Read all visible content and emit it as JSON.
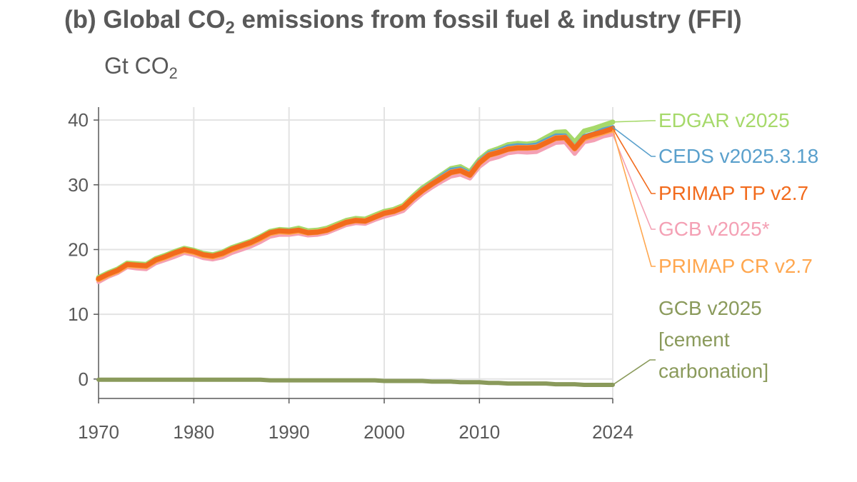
{
  "title": {
    "main": "(b) Global CO",
    "sub": "2",
    "rest": " emissions from fossil fuel & industry (FFI)"
  },
  "unit": {
    "main": "Gt CO",
    "sub": "2"
  },
  "chart_data": {
    "type": "line",
    "xlim": [
      1970,
      2024
    ],
    "ylim": [
      -3,
      42
    ],
    "x_ticks": [
      "1970",
      "1980",
      "1990",
      "2000",
      "2010",
      "2024"
    ],
    "y_ticks": [
      "0",
      "10",
      "20",
      "30",
      "40"
    ],
    "grid": true,
    "legend": "inline labels at right end of lines",
    "x": [
      1970,
      1971,
      1972,
      1973,
      1974,
      1975,
      1976,
      1977,
      1978,
      1979,
      1980,
      1981,
      1982,
      1983,
      1984,
      1985,
      1986,
      1987,
      1988,
      1989,
      1990,
      1991,
      1992,
      1993,
      1994,
      1995,
      1996,
      1997,
      1998,
      1999,
      2000,
      2001,
      2002,
      2003,
      2004,
      2005,
      2006,
      2007,
      2008,
      2009,
      2010,
      2011,
      2012,
      2013,
      2014,
      2015,
      2016,
      2017,
      2018,
      2019,
      2020,
      2021,
      2022,
      2023,
      2024
    ],
    "series": [
      {
        "name": "EDGAR v2025",
        "color": "#a6d96a",
        "width": 7,
        "values": [
          15.7,
          16.4,
          17.0,
          17.9,
          17.8,
          17.7,
          18.6,
          19.1,
          19.7,
          20.2,
          19.9,
          19.4,
          19.2,
          19.6,
          20.3,
          20.8,
          21.3,
          22.0,
          22.8,
          23.1,
          23.0,
          23.3,
          22.9,
          23.0,
          23.3,
          23.9,
          24.5,
          24.8,
          24.7,
          25.3,
          25.9,
          26.2,
          26.8,
          28.2,
          29.5,
          30.5,
          31.5,
          32.5,
          32.8,
          32.0,
          33.9,
          35.1,
          35.6,
          36.2,
          36.4,
          36.3,
          36.5,
          37.3,
          38.1,
          38.2,
          36.6,
          38.3,
          38.7,
          39.2,
          39.7
        ]
      },
      {
        "name": "CEDS v2025.3.18",
        "color": "#5aa0cc",
        "width": 6,
        "values": [
          15.5,
          16.2,
          16.8,
          17.7,
          17.6,
          17.5,
          18.4,
          18.9,
          19.5,
          20.0,
          19.7,
          19.2,
          19.0,
          19.4,
          20.1,
          20.6,
          21.1,
          21.8,
          22.6,
          22.9,
          22.9,
          23.0,
          22.7,
          22.8,
          23.1,
          23.7,
          24.3,
          24.6,
          24.5,
          25.1,
          25.7,
          26.0,
          26.6,
          28.0,
          29.3,
          30.3,
          31.3,
          32.3,
          32.5,
          31.8,
          33.7,
          34.9,
          35.3,
          35.9,
          36.1,
          36.0,
          36.2,
          36.9,
          37.6,
          37.6,
          35.8,
          37.5,
          37.9,
          38.5,
          38.9
        ]
      },
      {
        "name": "GCB v2025*",
        "color": "#f4a0b4",
        "width": 6,
        "values": [
          15.0,
          15.8,
          16.4,
          17.3,
          17.1,
          17.0,
          17.9,
          18.4,
          18.9,
          19.5,
          19.2,
          18.7,
          18.5,
          18.8,
          19.5,
          20.0,
          20.5,
          21.2,
          22.0,
          22.3,
          22.3,
          22.5,
          22.2,
          22.3,
          22.6,
          23.2,
          23.8,
          24.1,
          24.0,
          24.6,
          25.1,
          25.5,
          26.0,
          27.4,
          28.6,
          29.6,
          30.5,
          31.3,
          31.6,
          31.0,
          32.8,
          33.9,
          34.3,
          34.9,
          35.1,
          35.0,
          35.1,
          35.8,
          36.5,
          36.6,
          34.8,
          36.6,
          36.9,
          37.5,
          37.8
        ]
      },
      {
        "name": "PRIMAP CR v2.7",
        "color": "#ffa74f",
        "width": 8,
        "values": [
          15.4,
          16.1,
          16.7,
          17.6,
          17.5,
          17.4,
          18.3,
          18.8,
          19.4,
          19.9,
          19.6,
          19.1,
          18.9,
          19.3,
          20.0,
          20.5,
          21.0,
          21.7,
          22.5,
          22.8,
          22.7,
          22.9,
          22.6,
          22.7,
          23.0,
          23.6,
          24.2,
          24.5,
          24.4,
          25.0,
          25.6,
          25.9,
          26.5,
          27.9,
          29.1,
          30.1,
          31.0,
          31.9,
          32.2,
          31.5,
          33.4,
          34.6,
          35.0,
          35.5,
          35.7,
          35.7,
          35.8,
          36.5,
          37.2,
          37.3,
          35.6,
          37.2,
          37.6,
          38.1,
          38.5
        ]
      },
      {
        "name": "PRIMAP TP v2.7",
        "color": "#f26b1d",
        "width": 7,
        "values": [
          15.5,
          16.2,
          16.8,
          17.7,
          17.6,
          17.5,
          18.4,
          18.9,
          19.5,
          20.0,
          19.7,
          19.2,
          19.0,
          19.4,
          20.1,
          20.6,
          21.1,
          21.8,
          22.6,
          22.9,
          22.8,
          23.0,
          22.6,
          22.7,
          23.0,
          23.6,
          24.2,
          24.5,
          24.4,
          25.0,
          25.6,
          25.9,
          26.5,
          27.9,
          29.1,
          30.1,
          31.0,
          31.9,
          32.2,
          31.5,
          33.4,
          34.6,
          35.0,
          35.5,
          35.7,
          35.7,
          35.8,
          36.5,
          37.2,
          37.3,
          35.6,
          37.3,
          37.8,
          38.2,
          38.7
        ]
      },
      {
        "name": "GCB v2025 [cement carbonation]",
        "color": "#8a9a5b",
        "width": 6,
        "values": [
          -0.1,
          -0.1,
          -0.1,
          -0.1,
          -0.1,
          -0.1,
          -0.1,
          -0.1,
          -0.1,
          -0.1,
          -0.1,
          -0.1,
          -0.1,
          -0.1,
          -0.1,
          -0.1,
          -0.1,
          -0.1,
          -0.2,
          -0.2,
          -0.2,
          -0.2,
          -0.2,
          -0.2,
          -0.2,
          -0.2,
          -0.2,
          -0.2,
          -0.2,
          -0.2,
          -0.3,
          -0.3,
          -0.3,
          -0.3,
          -0.3,
          -0.4,
          -0.4,
          -0.4,
          -0.5,
          -0.5,
          -0.5,
          -0.6,
          -0.6,
          -0.7,
          -0.7,
          -0.7,
          -0.7,
          -0.7,
          -0.8,
          -0.8,
          -0.8,
          -0.9,
          -0.9,
          -0.9,
          -0.9
        ]
      }
    ],
    "labels": [
      {
        "lines": [
          "EDGAR v2025"
        ],
        "color": "#a6d96a",
        "series": "EDGAR v2025"
      },
      {
        "lines": [
          "CEDS v2025.3.18"
        ],
        "color": "#5aa0cc",
        "series": "CEDS v2025.3.18"
      },
      {
        "lines": [
          "PRIMAP TP v2.7"
        ],
        "color": "#f26b1d",
        "series": "PRIMAP TP v2.7"
      },
      {
        "lines": [
          "GCB v2025*"
        ],
        "color": "#f4a0b4",
        "series": "GCB v2025*"
      },
      {
        "lines": [
          "PRIMAP CR v2.7"
        ],
        "color": "#ffa74f",
        "series": "PRIMAP CR v2.7"
      },
      {
        "lines": [
          "GCB v2025",
          "[cement",
          "carbonation]"
        ],
        "color": "#8a9a5b",
        "series": "GCB v2025 [cement carbonation]"
      }
    ]
  }
}
